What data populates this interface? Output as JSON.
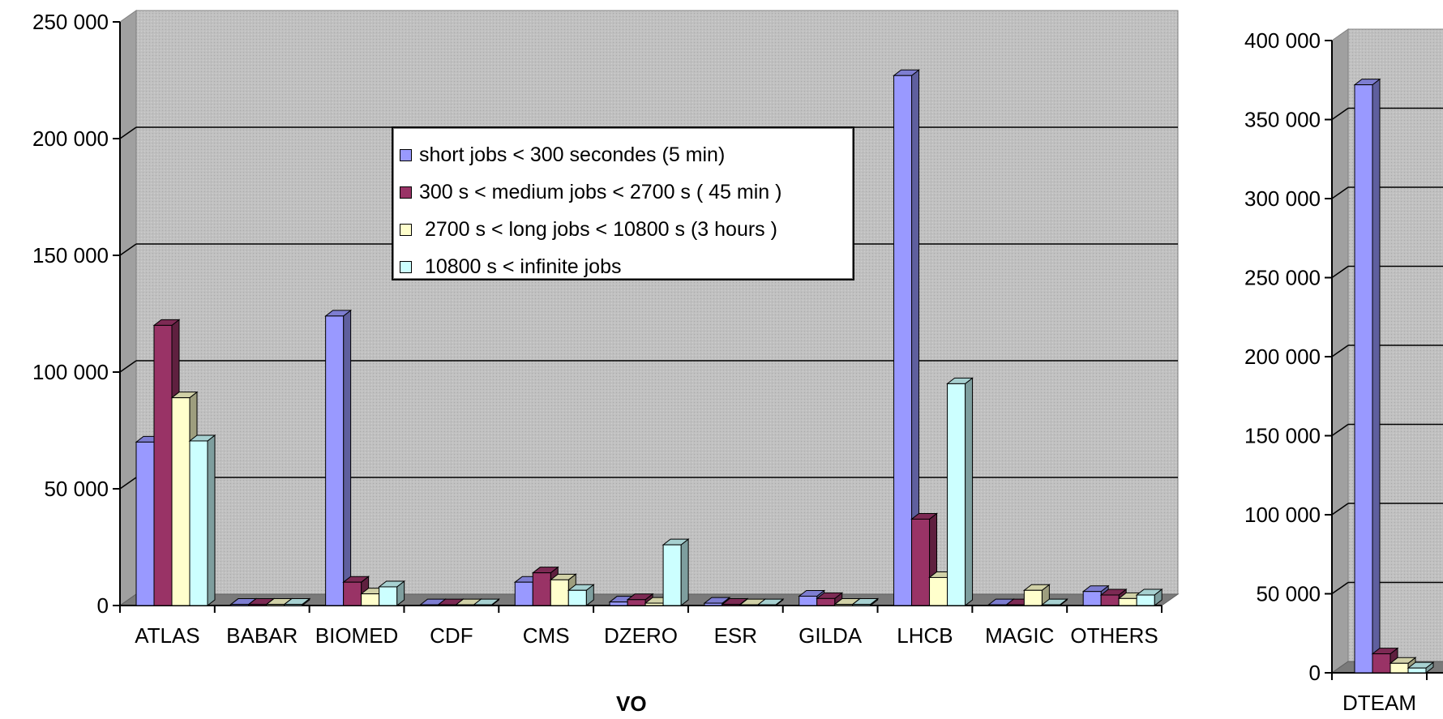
{
  "chart_data": [
    {
      "type": "bar",
      "xlabel": "VO",
      "ylim": [
        0,
        250000
      ],
      "yticks": [
        "250 000",
        "200 000",
        "150 000",
        "100 000",
        "50 000",
        "0"
      ],
      "yticks_values": [
        250000,
        200000,
        150000,
        100000,
        50000,
        0
      ],
      "grid": true,
      "legend_placement": "top-center",
      "categories": [
        "ATLAS",
        "BABAR",
        "BIOMED",
        "CDF",
        "CMS",
        "DZERO",
        "ESR",
        "GILDA",
        "LHCB",
        "MAGIC",
        "OTHERS"
      ],
      "series": [
        {
          "name": "short jobs < 300 secondes (5 min)",
          "color": "#9999ff",
          "values": [
            70000,
            500,
            124000,
            300,
            10000,
            1500,
            1000,
            4000,
            227000,
            300,
            6000
          ]
        },
        {
          "name": "300 s < medium jobs < 2700 s ( 45 min )",
          "color": "#993366",
          "values": [
            120000,
            500,
            10000,
            300,
            14000,
            2500,
            500,
            3000,
            37000,
            300,
            4500
          ]
        },
        {
          "name": " 2700 s < long jobs < 10800 s (3 hours )",
          "color": "#ffffcc",
          "values": [
            89000,
            500,
            5000,
            300,
            11000,
            1000,
            300,
            500,
            12000,
            6500,
            3000
          ]
        },
        {
          "name": " 10800 s < infinite jobs",
          "color": "#ccffff",
          "values": [
            70500,
            500,
            8000,
            300,
            6500,
            26000,
            300,
            500,
            95000,
            300,
            4500
          ]
        }
      ]
    },
    {
      "type": "bar",
      "ylim": [
        0,
        400000
      ],
      "yticks": [
        "400 000",
        "350 000",
        "300 000",
        "250 000",
        "200 000",
        "150 000",
        "100 000",
        "50 000",
        "0"
      ],
      "yticks_values": [
        400000,
        350000,
        300000,
        250000,
        200000,
        150000,
        100000,
        50000,
        0
      ],
      "grid": true,
      "categories": [
        "DTEAM"
      ],
      "series": [
        {
          "name": "short jobs < 300 secondes (5 min)",
          "values": [
            372000
          ]
        },
        {
          "name": "300 s < medium jobs < 2700 s ( 45 min )",
          "values": [
            12000
          ]
        },
        {
          "name": " 2700 s < long jobs < 10800 s (3 hours )",
          "values": [
            6000
          ]
        },
        {
          "name": " 10800 s < infinite jobs",
          "values": [
            3000
          ]
        }
      ]
    }
  ]
}
